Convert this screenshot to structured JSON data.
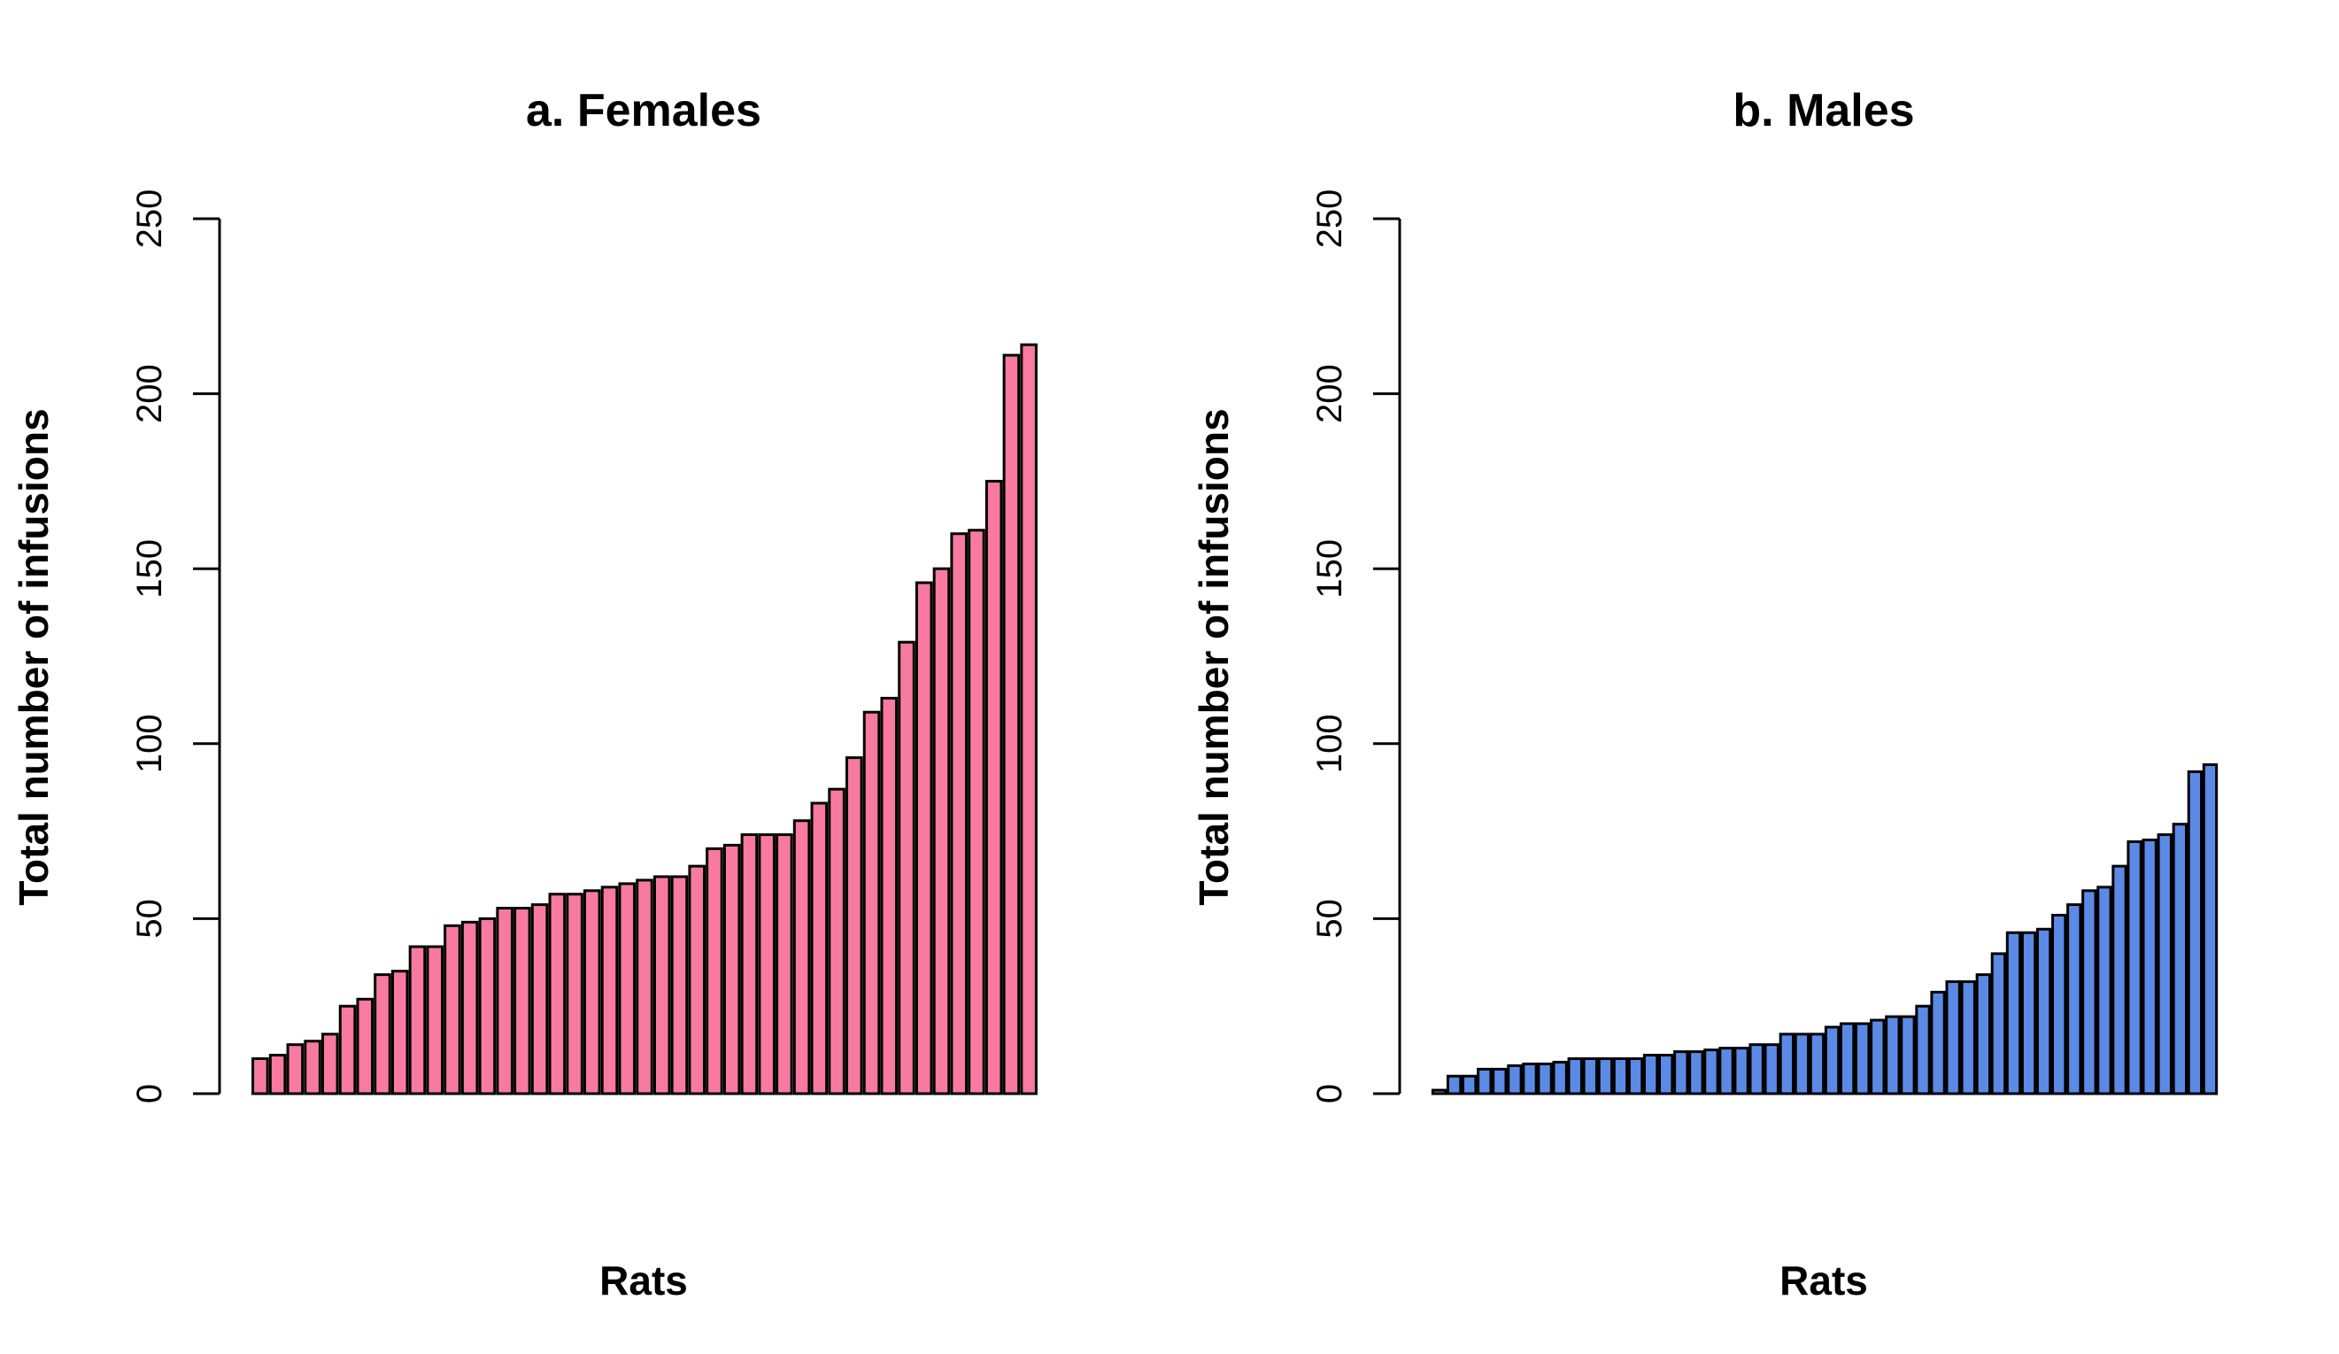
{
  "chart_data": [
    {
      "type": "bar",
      "title": "a. Females",
      "xlabel": "Rats",
      "ylabel": "Total number of infusions",
      "ylim": [
        0,
        250
      ],
      "yticks": [
        0,
        50,
        100,
        150,
        200,
        250
      ],
      "bar_color": "#f87aa0",
      "edge_color": "#000000",
      "values": [
        10,
        11,
        14,
        15,
        17,
        25,
        27,
        34,
        35,
        42,
        42,
        48,
        49,
        50,
        53,
        53,
        54,
        57,
        57,
        58,
        59,
        60,
        61,
        62,
        62,
        65,
        70,
        71,
        74,
        74,
        74,
        78,
        83,
        87,
        96,
        109,
        113,
        129,
        146,
        150,
        160,
        161,
        175,
        211,
        214
      ]
    },
    {
      "type": "bar",
      "title": "b. Males",
      "xlabel": "Rats",
      "ylabel": "Total number of infusions",
      "ylim": [
        0,
        250
      ],
      "yticks": [
        0,
        50,
        100,
        150,
        200,
        250
      ],
      "bar_color": "#5b8ae6",
      "edge_color": "#000000",
      "values": [
        1,
        5,
        5,
        7,
        7,
        8,
        8.5,
        8.5,
        9,
        10,
        10,
        10,
        10,
        10,
        11,
        11,
        12,
        12,
        12.5,
        13,
        13,
        14,
        14,
        17,
        17,
        17,
        19,
        20,
        20,
        21,
        22,
        22,
        25,
        29,
        32,
        32,
        34,
        40,
        46,
        46,
        47,
        51,
        54,
        58,
        59,
        65,
        72,
        72.5,
        74,
        77,
        92,
        94
      ]
    }
  ]
}
